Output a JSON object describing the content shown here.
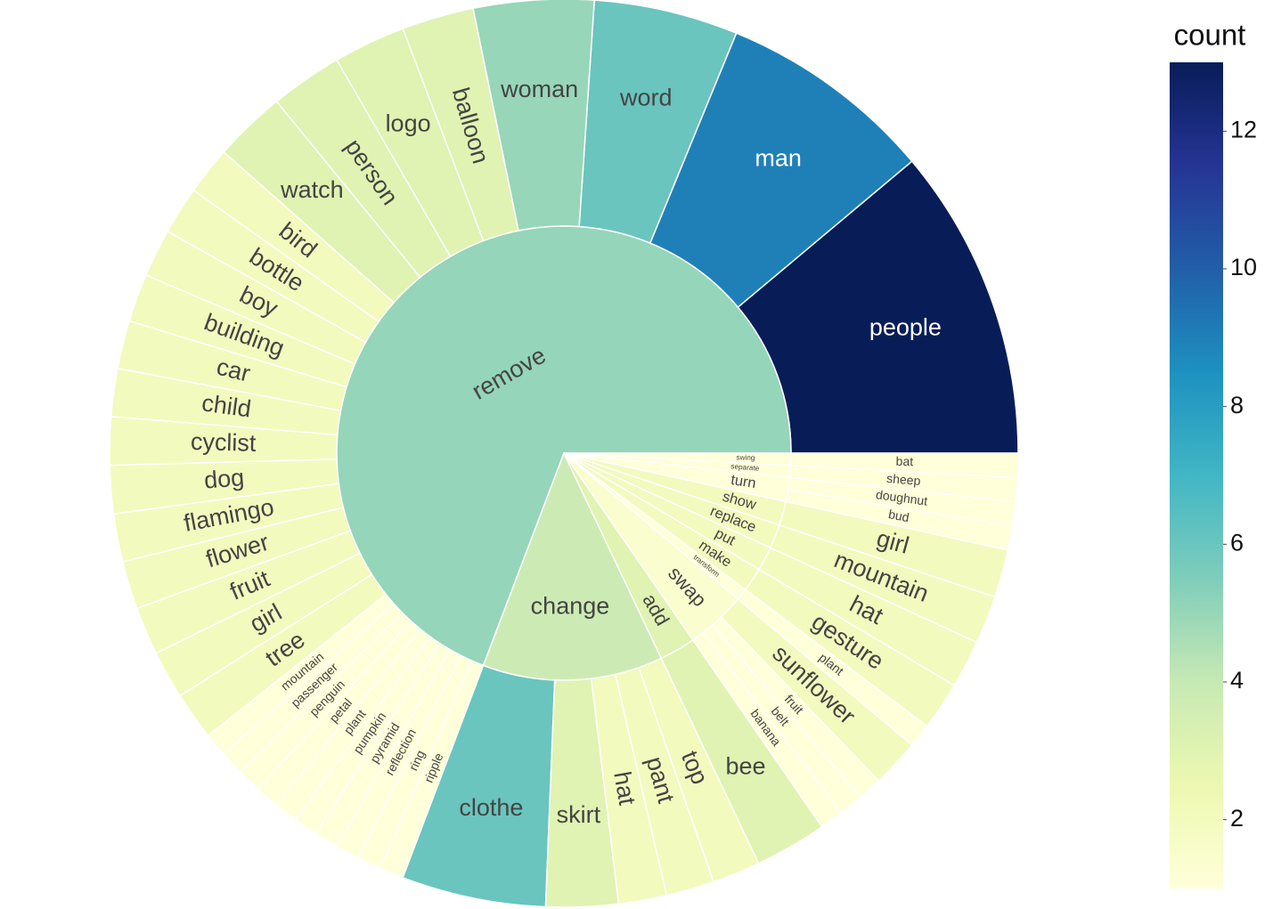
{
  "chart_data": {
    "type": "sunburst",
    "parents": [
      {
        "label": "remove",
        "children": [
          "people",
          "man",
          "word",
          "woman",
          "balloon",
          "logo",
          "person",
          "watch",
          "bird",
          "bottle",
          "boy",
          "building",
          "car",
          "child",
          "cyclist",
          "dog",
          "flamingo",
          "flower",
          "fruit",
          "girl",
          "tree",
          "mountain",
          "passenger",
          "penguin",
          "petal",
          "plant",
          "pumpkin",
          "pyramid",
          "reflection",
          "ring",
          "ripple"
        ],
        "values": [
          13,
          9,
          6,
          5,
          3,
          3,
          3,
          3,
          2,
          2,
          2,
          2,
          2,
          2,
          2,
          2,
          2,
          2,
          2,
          2,
          2,
          1,
          1,
          1,
          1,
          1,
          1,
          1,
          1,
          1,
          1
        ]
      },
      {
        "label": "change",
        "children": [
          "clothe",
          "skirt",
          "hat",
          "pant",
          "top"
        ],
        "values": [
          6,
          3,
          2,
          2,
          2
        ]
      },
      {
        "label": "add",
        "children": [
          "bee"
        ],
        "values": [
          3
        ]
      },
      {
        "label": "swap",
        "children": [
          "banana",
          "belt",
          "fruit",
          "sunflower"
        ],
        "values": [
          1,
          1,
          1,
          2
        ]
      },
      {
        "label": "transform",
        "children": [
          "plant"
        ],
        "values": [
          1
        ]
      },
      {
        "label": "make",
        "children": [
          "gesture"
        ],
        "values": [
          2
        ]
      },
      {
        "label": "put",
        "children": [
          "hat"
        ],
        "values": [
          2
        ]
      },
      {
        "label": "replace",
        "children": [
          "mountain"
        ],
        "values": [
          2
        ]
      },
      {
        "label": "show",
        "children": [
          "girl"
        ],
        "values": [
          2
        ]
      },
      {
        "label": "turn",
        "children": [
          "bud",
          "doughnut"
        ],
        "values": [
          1,
          1
        ]
      },
      {
        "label": "separate",
        "children": [
          "sheep"
        ],
        "values": [
          1
        ]
      },
      {
        "label": "swing",
        "children": [
          "bat"
        ],
        "values": [
          1
        ]
      }
    ],
    "colorscale": "YlGnBu",
    "colorbar": {
      "title": "count",
      "range": [
        1,
        13
      ],
      "ticks": [
        2,
        4,
        6,
        8,
        10,
        12
      ]
    }
  }
}
